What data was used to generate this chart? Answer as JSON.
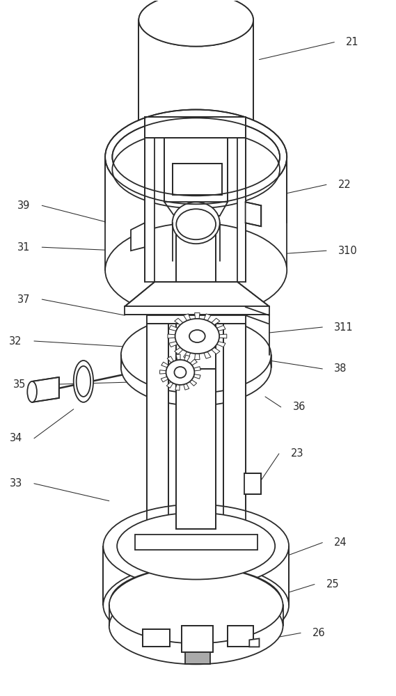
{
  "bg_color": "#ffffff",
  "line_color": "#2a2a2a",
  "lw": 1.3,
  "lw_thin": 0.7,
  "lw_thick": 1.8,
  "fig_w": 5.69,
  "fig_h": 10.0,
  "dpi": 100,
  "labels": {
    "21": [
      0.875,
      0.06,
      0.655,
      0.085
    ],
    "22": [
      0.855,
      0.265,
      0.72,
      0.278
    ],
    "39": [
      0.075,
      0.295,
      0.31,
      0.325
    ],
    "310": [
      0.855,
      0.36,
      0.7,
      0.365
    ],
    "31": [
      0.075,
      0.355,
      0.305,
      0.36
    ],
    "37": [
      0.075,
      0.43,
      0.315,
      0.453
    ],
    "311": [
      0.845,
      0.47,
      0.68,
      0.478
    ],
    "32": [
      0.055,
      0.49,
      0.43,
      0.502
    ],
    "38": [
      0.845,
      0.53,
      0.68,
      0.518
    ],
    "35": [
      0.065,
      0.553,
      0.395,
      0.548
    ],
    "36": [
      0.74,
      0.585,
      0.67,
      0.57
    ],
    "34": [
      0.055,
      0.63,
      0.185,
      0.588
    ],
    "23": [
      0.735,
      0.652,
      0.66,
      0.69
    ],
    "33": [
      0.055,
      0.695,
      0.275,
      0.72
    ],
    "24": [
      0.845,
      0.78,
      0.72,
      0.8
    ],
    "25": [
      0.825,
      0.84,
      0.71,
      0.855
    ],
    "26": [
      0.79,
      0.91,
      0.645,
      0.922
    ]
  }
}
